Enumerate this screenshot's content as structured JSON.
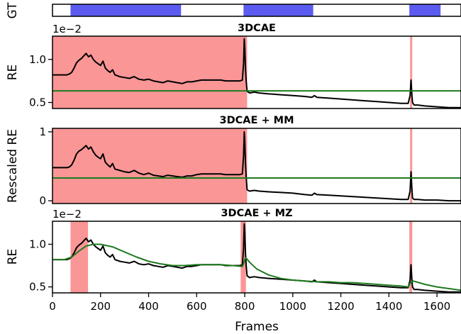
{
  "chart_data": [
    {
      "type": "timeline",
      "ylabel": "GT",
      "xlim": [
        0,
        1700
      ],
      "color": "#5b5bf0",
      "segments": [
        [
          75,
          535
        ],
        [
          795,
          1085
        ],
        [
          1485,
          1615
        ]
      ]
    },
    {
      "type": "line",
      "title": "3DCAE",
      "ylabel": "RE",
      "offset_text": "1e−2",
      "xlim": [
        0,
        1700
      ],
      "ylim": [
        0.43,
        1.27
      ],
      "yticks": [
        0.5,
        1.0
      ],
      "ytick_labels": [
        "0.5",
        "1.0"
      ],
      "shaded_regions": [
        [
          0,
          810
        ],
        [
          1488,
          1497
        ]
      ],
      "shade_color": "#fa9696",
      "series": [
        {
          "color": "#000000",
          "x": [
            0,
            20,
            40,
            60,
            70,
            80,
            90,
            100,
            110,
            120,
            130,
            140,
            150,
            160,
            170,
            180,
            190,
            200,
            210,
            220,
            230,
            240,
            250,
            260,
            280,
            300,
            320,
            340,
            360,
            380,
            400,
            420,
            440,
            460,
            480,
            500,
            520,
            540,
            560,
            580,
            600,
            620,
            640,
            660,
            680,
            700,
            720,
            740,
            760,
            780,
            790,
            795,
            798,
            800,
            803,
            806,
            810,
            820,
            840,
            860,
            900,
            950,
            1000,
            1050,
            1080,
            1090,
            1100,
            1150,
            1200,
            1250,
            1300,
            1350,
            1400,
            1450,
            1480,
            1488,
            1492,
            1495,
            1498,
            1505,
            1520,
            1550,
            1600,
            1650,
            1700
          ],
          "y": [
            0.82,
            0.82,
            0.82,
            0.82,
            0.83,
            0.85,
            0.9,
            0.96,
            0.99,
            1.01,
            1.04,
            1.07,
            1.03,
            1.05,
            1.0,
            0.97,
            0.95,
            0.93,
            0.98,
            0.9,
            0.87,
            0.85,
            0.88,
            0.82,
            0.8,
            0.79,
            0.78,
            0.8,
            0.77,
            0.76,
            0.77,
            0.75,
            0.74,
            0.73,
            0.75,
            0.74,
            0.73,
            0.72,
            0.74,
            0.74,
            0.75,
            0.76,
            0.76,
            0.76,
            0.76,
            0.76,
            0.75,
            0.75,
            0.75,
            0.75,
            0.76,
            0.95,
            1.24,
            1.15,
            0.9,
            0.75,
            0.63,
            0.61,
            0.62,
            0.61,
            0.6,
            0.59,
            0.58,
            0.57,
            0.56,
            0.58,
            0.56,
            0.55,
            0.54,
            0.53,
            0.52,
            0.51,
            0.5,
            0.49,
            0.49,
            0.58,
            0.76,
            0.62,
            0.5,
            0.47,
            0.47,
            0.46,
            0.45,
            0.44,
            0.44
          ]
        },
        {
          "color": "#1f7a1f",
          "x": [
            0,
            1700
          ],
          "y": [
            0.635,
            0.635
          ]
        }
      ]
    },
    {
      "type": "line",
      "title": "3DCAE + MM",
      "ylabel": "Rescaled RE",
      "xlim": [
        0,
        1700
      ],
      "ylim": [
        -0.04,
        1.05
      ],
      "yticks": [
        0,
        1
      ],
      "ytick_labels": [
        "0",
        "1"
      ],
      "shaded_regions": [
        [
          0,
          810
        ],
        [
          1488,
          1497
        ]
      ],
      "shade_color": "#fa9696",
      "series": [
        {
          "color": "#000000",
          "x": [
            0,
            20,
            40,
            60,
            70,
            80,
            90,
            100,
            110,
            120,
            130,
            140,
            150,
            160,
            170,
            180,
            190,
            200,
            210,
            220,
            230,
            240,
            250,
            260,
            280,
            300,
            320,
            340,
            360,
            380,
            400,
            420,
            440,
            460,
            480,
            500,
            520,
            540,
            560,
            580,
            600,
            620,
            640,
            660,
            680,
            700,
            720,
            740,
            760,
            780,
            790,
            795,
            798,
            800,
            803,
            806,
            810,
            820,
            840,
            860,
            900,
            950,
            1000,
            1050,
            1080,
            1090,
            1100,
            1150,
            1200,
            1250,
            1300,
            1350,
            1400,
            1450,
            1480,
            1488,
            1492,
            1495,
            1498,
            1505,
            1520,
            1550,
            1600,
            1650,
            1700
          ],
          "y": [
            0.48,
            0.48,
            0.48,
            0.48,
            0.49,
            0.52,
            0.59,
            0.68,
            0.72,
            0.74,
            0.77,
            0.8,
            0.75,
            0.78,
            0.71,
            0.66,
            0.63,
            0.61,
            0.68,
            0.56,
            0.52,
            0.49,
            0.54,
            0.46,
            0.44,
            0.42,
            0.41,
            0.44,
            0.4,
            0.38,
            0.4,
            0.37,
            0.36,
            0.35,
            0.37,
            0.36,
            0.35,
            0.34,
            0.36,
            0.36,
            0.38,
            0.39,
            0.39,
            0.39,
            0.39,
            0.39,
            0.38,
            0.38,
            0.38,
            0.38,
            0.39,
            0.65,
            1.0,
            0.88,
            0.55,
            0.35,
            0.16,
            0.14,
            0.15,
            0.14,
            0.13,
            0.12,
            0.11,
            0.09,
            0.08,
            0.11,
            0.09,
            0.08,
            0.07,
            0.06,
            0.05,
            0.04,
            0.03,
            0.02,
            0.02,
            0.14,
            0.42,
            0.22,
            0.04,
            0.02,
            0.02,
            0.01,
            0.01,
            0.0,
            0.0
          ]
        },
        {
          "color": "#1f7a1f",
          "x": [
            0,
            1700
          ],
          "y": [
            0.33,
            0.33
          ]
        }
      ]
    },
    {
      "type": "line",
      "title": "3DCAE + MZ",
      "ylabel": "RE",
      "xlabel": "Frames",
      "offset_text": "1e−2",
      "xlim": [
        0,
        1700
      ],
      "ylim": [
        0.43,
        1.27
      ],
      "yticks": [
        0.5,
        1.0
      ],
      "ytick_labels": [
        "0.5",
        "1.0"
      ],
      "xticks": [
        0,
        200,
        400,
        600,
        800,
        1000,
        1200,
        1400,
        1600
      ],
      "xtick_labels": [
        "0",
        "200",
        "400",
        "600",
        "800",
        "1000",
        "1200",
        "1400",
        "1600"
      ],
      "shaded_regions": [
        [
          75,
          148
        ],
        [
          783,
          805
        ],
        [
          1485,
          1497
        ]
      ],
      "shade_color": "#fa9696",
      "series": [
        {
          "color": "#000000",
          "x": [
            0,
            20,
            40,
            60,
            70,
            80,
            90,
            100,
            110,
            120,
            130,
            140,
            150,
            160,
            170,
            180,
            190,
            200,
            210,
            220,
            230,
            240,
            250,
            260,
            280,
            300,
            320,
            340,
            360,
            380,
            400,
            420,
            440,
            460,
            480,
            500,
            520,
            540,
            560,
            580,
            600,
            620,
            640,
            660,
            680,
            700,
            720,
            740,
            760,
            780,
            790,
            795,
            798,
            800,
            803,
            806,
            810,
            820,
            840,
            860,
            900,
            950,
            1000,
            1050,
            1080,
            1090,
            1100,
            1150,
            1200,
            1250,
            1300,
            1350,
            1400,
            1450,
            1480,
            1488,
            1492,
            1495,
            1498,
            1505,
            1520,
            1550,
            1600,
            1650,
            1700
          ],
          "y": [
            0.82,
            0.82,
            0.82,
            0.82,
            0.83,
            0.85,
            0.9,
            0.96,
            0.99,
            1.01,
            1.04,
            1.07,
            1.03,
            1.05,
            1.0,
            0.97,
            0.95,
            0.93,
            0.98,
            0.9,
            0.87,
            0.85,
            0.88,
            0.82,
            0.8,
            0.79,
            0.78,
            0.8,
            0.77,
            0.76,
            0.77,
            0.75,
            0.74,
            0.73,
            0.75,
            0.74,
            0.73,
            0.72,
            0.74,
            0.74,
            0.75,
            0.76,
            0.76,
            0.76,
            0.76,
            0.76,
            0.75,
            0.75,
            0.75,
            0.75,
            0.76,
            0.95,
            1.24,
            1.15,
            0.9,
            0.75,
            0.63,
            0.61,
            0.62,
            0.61,
            0.6,
            0.59,
            0.58,
            0.57,
            0.56,
            0.58,
            0.56,
            0.55,
            0.54,
            0.53,
            0.52,
            0.51,
            0.5,
            0.49,
            0.49,
            0.58,
            0.76,
            0.62,
            0.5,
            0.47,
            0.47,
            0.46,
            0.45,
            0.44,
            0.44
          ]
        },
        {
          "color": "#1f7a1f",
          "x": [
            0,
            50,
            80,
            110,
            140,
            170,
            200,
            250,
            300,
            350,
            400,
            450,
            500,
            550,
            600,
            650,
            700,
            750,
            790,
            795,
            800,
            805,
            820,
            850,
            900,
            950,
            1000,
            1050,
            1100,
            1150,
            1200,
            1250,
            1300,
            1350,
            1400,
            1450,
            1480,
            1490,
            1500,
            1550,
            1600,
            1650,
            1700
          ],
          "y": [
            0.82,
            0.82,
            0.85,
            0.92,
            0.98,
            1.0,
            1.0,
            0.97,
            0.91,
            0.85,
            0.8,
            0.77,
            0.75,
            0.75,
            0.76,
            0.76,
            0.76,
            0.75,
            0.74,
            0.77,
            0.82,
            0.84,
            0.79,
            0.71,
            0.64,
            0.6,
            0.58,
            0.57,
            0.56,
            0.56,
            0.55,
            0.55,
            0.54,
            0.53,
            0.52,
            0.51,
            0.5,
            0.55,
            0.57,
            0.53,
            0.5,
            0.48,
            0.46
          ]
        }
      ]
    }
  ]
}
